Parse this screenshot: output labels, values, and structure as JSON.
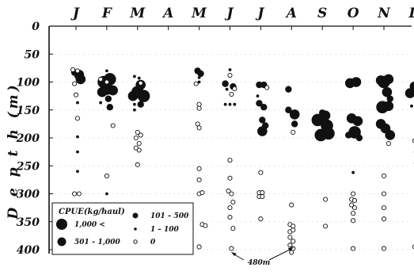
{
  "chart_data": {
    "type": "scatter",
    "ylabel": "D e p t h   (m)",
    "months": [
      "J",
      "F",
      "M",
      "A",
      "M",
      "J",
      "J",
      "A",
      "S",
      "O",
      "N",
      "D"
    ],
    "ylim": [
      0,
      400
    ],
    "yticks": [
      "0",
      "50",
      "100",
      "150",
      "200",
      "250",
      "300",
      "350",
      "400"
    ],
    "legend": {
      "title": "CPUE(kg/haul)",
      "items": [
        {
          "label": "1,000 <",
          "marker": "large-filled"
        },
        {
          "label": "101 – 500",
          "marker": "small-filled"
        },
        {
          "label": "501 – 1,000",
          "marker": "medium-filled"
        },
        {
          "label": "1 – 100",
          "marker": "dot-filled"
        },
        {
          "label": "0",
          "marker": "open"
        }
      ]
    },
    "annotation": "480m",
    "series": [
      {
        "month": 1,
        "points": [
          {
            "x": -0.05,
            "d": 83,
            "c": 2
          },
          {
            "x": 0.1,
            "d": 87,
            "c": 3
          },
          {
            "x": 0.15,
            "d": 95,
            "c": 3
          },
          {
            "x": -0.1,
            "d": 78,
            "c": 0
          },
          {
            "x": 0.05,
            "d": 80,
            "c": 0
          },
          {
            "x": -0.05,
            "d": 103,
            "c": 0
          },
          {
            "x": 0.0,
            "d": 123,
            "c": 0
          },
          {
            "x": 0.05,
            "d": 137,
            "c": 1
          },
          {
            "x": 0.05,
            "d": 165,
            "c": 0
          },
          {
            "x": 0.05,
            "d": 198,
            "c": 1
          },
          {
            "x": 0.05,
            "d": 225,
            "c": 1
          },
          {
            "x": 0.05,
            "d": 260,
            "c": 1
          },
          {
            "x": -0.05,
            "d": 300,
            "c": 0
          },
          {
            "x": 0.1,
            "d": 300,
            "c": 0
          },
          {
            "x": 0.0,
            "d": 325,
            "c": 0
          }
        ]
      },
      {
        "month": 2,
        "points": [
          {
            "x": 0.0,
            "d": 80,
            "c": 1
          },
          {
            "x": -0.1,
            "d": 100,
            "c": 4
          },
          {
            "x": 0.1,
            "d": 95,
            "c": 4
          },
          {
            "x": 0.0,
            "d": 112,
            "c": 4
          },
          {
            "x": -0.15,
            "d": 118,
            "c": 3
          },
          {
            "x": 0.2,
            "d": 115,
            "c": 3
          },
          {
            "x": 0.05,
            "d": 130,
            "c": 2
          },
          {
            "x": -0.2,
            "d": 137,
            "c": 1
          },
          {
            "x": 0.1,
            "d": 145,
            "c": 2
          },
          {
            "x": 0.0,
            "d": 100,
            "c": 0
          },
          {
            "x": -0.2,
            "d": 95,
            "c": 0
          },
          {
            "x": 0.2,
            "d": 178,
            "c": 0
          },
          {
            "x": 0.0,
            "d": 268,
            "c": 0
          },
          {
            "x": 0.0,
            "d": 300,
            "c": 1
          },
          {
            "x": 0.0,
            "d": 330,
            "c": 0
          }
        ]
      },
      {
        "month": 3,
        "points": [
          {
            "x": -0.1,
            "d": 90,
            "c": 1
          },
          {
            "x": 0.05,
            "d": 93,
            "c": 1
          },
          {
            "x": 0.1,
            "d": 105,
            "c": 3
          },
          {
            "x": 0.0,
            "d": 118,
            "c": 4
          },
          {
            "x": 0.2,
            "d": 125,
            "c": 4
          },
          {
            "x": -0.15,
            "d": 125,
            "c": 3
          },
          {
            "x": 0.1,
            "d": 140,
            "c": 2
          },
          {
            "x": -0.1,
            "d": 140,
            "c": 1
          },
          {
            "x": -0.1,
            "d": 150,
            "c": 1
          },
          {
            "x": 0.1,
            "d": 102,
            "c": 0
          },
          {
            "x": 0.0,
            "d": 190,
            "c": 0
          },
          {
            "x": 0.1,
            "d": 195,
            "c": 0
          },
          {
            "x": -0.05,
            "d": 200,
            "c": 0
          },
          {
            "x": 0.05,
            "d": 210,
            "c": 0
          },
          {
            "x": -0.05,
            "d": 218,
            "c": 0
          },
          {
            "x": 0.05,
            "d": 222,
            "c": 0
          },
          {
            "x": 0.0,
            "d": 248,
            "c": 0
          }
        ]
      },
      {
        "month": 5,
        "points": [
          {
            "x": -0.05,
            "d": 80,
            "c": 2
          },
          {
            "x": 0.05,
            "d": 85,
            "c": 2
          },
          {
            "x": 0.0,
            "d": 92,
            "c": 1
          },
          {
            "x": 0.0,
            "d": 100,
            "c": 1
          },
          {
            "x": -0.1,
            "d": 103,
            "c": 0
          },
          {
            "x": 0.0,
            "d": 140,
            "c": 0
          },
          {
            "x": 0.0,
            "d": 147,
            "c": 0
          },
          {
            "x": -0.05,
            "d": 175,
            "c": 0
          },
          {
            "x": 0.0,
            "d": 182,
            "c": 0
          },
          {
            "x": 0.0,
            "d": 255,
            "c": 0
          },
          {
            "x": 0.0,
            "d": 275,
            "c": 0
          },
          {
            "x": 0.0,
            "d": 300,
            "c": 0
          },
          {
            "x": 0.1,
            "d": 298,
            "c": 0
          },
          {
            "x": 0.1,
            "d": 355,
            "c": 0
          },
          {
            "x": 0.2,
            "d": 357,
            "c": 0
          },
          {
            "x": 0.0,
            "d": 395,
            "c": 0
          }
        ]
      },
      {
        "month": 6,
        "points": [
          {
            "x": 0.0,
            "d": 78,
            "c": 1
          },
          {
            "x": 0.0,
            "d": 88,
            "c": 0
          },
          {
            "x": -0.15,
            "d": 103,
            "c": 2
          },
          {
            "x": 0.1,
            "d": 108,
            "c": 2
          },
          {
            "x": -0.1,
            "d": 113,
            "c": 1
          },
          {
            "x": 0.15,
            "d": 112,
            "c": 0
          },
          {
            "x": 0.05,
            "d": 122,
            "c": 0
          },
          {
            "x": -0.15,
            "d": 140,
            "c": 1
          },
          {
            "x": 0.0,
            "d": 140,
            "c": 1
          },
          {
            "x": 0.15,
            "d": 140,
            "c": 1
          },
          {
            "x": 0.0,
            "d": 240,
            "c": 0
          },
          {
            "x": 0.0,
            "d": 272,
            "c": 0
          },
          {
            "x": -0.05,
            "d": 295,
            "c": 0
          },
          {
            "x": 0.05,
            "d": 300,
            "c": 0
          },
          {
            "x": 0.1,
            "d": 315,
            "c": 0
          },
          {
            "x": 0.0,
            "d": 325,
            "c": 0
          },
          {
            "x": 0.0,
            "d": 342,
            "c": 0
          },
          {
            "x": 0.1,
            "d": 362,
            "c": 0
          },
          {
            "x": 0.05,
            "d": 398,
            "c": 0
          }
        ]
      },
      {
        "month": 7,
        "points": [
          {
            "x": -0.05,
            "d": 105,
            "c": 2
          },
          {
            "x": 0.1,
            "d": 105,
            "c": 2
          },
          {
            "x": 0.2,
            "d": 110,
            "c": 0
          },
          {
            "x": -0.1,
            "d": 125,
            "c": 1
          },
          {
            "x": -0.05,
            "d": 138,
            "c": 2
          },
          {
            "x": 0.1,
            "d": 145,
            "c": 2
          },
          {
            "x": 0.05,
            "d": 168,
            "c": 2
          },
          {
            "x": 0.15,
            "d": 178,
            "c": 2
          },
          {
            "x": 0.05,
            "d": 188,
            "c": 3
          },
          {
            "x": 0.0,
            "d": 262,
            "c": 0
          },
          {
            "x": -0.05,
            "d": 298,
            "c": 0
          },
          {
            "x": 0.05,
            "d": 298,
            "c": 0
          },
          {
            "x": -0.05,
            "d": 305,
            "c": 0
          },
          {
            "x": 0.05,
            "d": 305,
            "c": 0
          },
          {
            "x": 0.0,
            "d": 345,
            "c": 0
          }
        ]
      },
      {
        "month": 8,
        "points": [
          {
            "x": -0.1,
            "d": 113,
            "c": 2
          },
          {
            "x": -0.1,
            "d": 150,
            "c": 2
          },
          {
            "x": 0.1,
            "d": 158,
            "c": 3
          },
          {
            "x": 0.1,
            "d": 175,
            "c": 2
          },
          {
            "x": 0.05,
            "d": 190,
            "c": 0
          },
          {
            "x": 0.0,
            "d": 320,
            "c": 0
          },
          {
            "x": -0.05,
            "d": 355,
            "c": 0
          },
          {
            "x": 0.05,
            "d": 358,
            "c": 0
          },
          {
            "x": -0.05,
            "d": 368,
            "c": 0
          },
          {
            "x": 0.05,
            "d": 365,
            "c": 0
          },
          {
            "x": -0.05,
            "d": 378,
            "c": 0
          },
          {
            "x": 0.05,
            "d": 385,
            "c": 0
          },
          {
            "x": -0.05,
            "d": 392,
            "c": 0
          },
          {
            "x": 0.05,
            "d": 398,
            "c": 0
          },
          {
            "x": 0.0,
            "d": 405,
            "c": 0
          }
        ]
      },
      {
        "month": 9,
        "points": [
          {
            "x": -0.15,
            "d": 168,
            "c": 4
          },
          {
            "x": 0.1,
            "d": 160,
            "c": 3
          },
          {
            "x": 0.15,
            "d": 178,
            "c": 4
          },
          {
            "x": -0.05,
            "d": 195,
            "c": 4
          },
          {
            "x": 0.2,
            "d": 192,
            "c": 4
          },
          {
            "x": 0.0,
            "d": 155,
            "c": 2
          },
          {
            "x": 0.1,
            "d": 310,
            "c": 0
          },
          {
            "x": 0.1,
            "d": 358,
            "c": 0
          }
        ]
      },
      {
        "month": 10,
        "points": [
          {
            "x": -0.1,
            "d": 102,
            "c": 3
          },
          {
            "x": 0.1,
            "d": 100,
            "c": 3
          },
          {
            "x": -0.05,
            "d": 165,
            "c": 3
          },
          {
            "x": 0.15,
            "d": 170,
            "c": 3
          },
          {
            "x": 0.05,
            "d": 190,
            "c": 4
          },
          {
            "x": -0.15,
            "d": 195,
            "c": 2
          },
          {
            "x": 0.2,
            "d": 200,
            "c": 2
          },
          {
            "x": 0.0,
            "d": 262,
            "c": 1
          },
          {
            "x": 0.0,
            "d": 300,
            "c": 0
          },
          {
            "x": -0.05,
            "d": 310,
            "c": 0
          },
          {
            "x": 0.05,
            "d": 312,
            "c": 0
          },
          {
            "x": -0.05,
            "d": 320,
            "c": 0
          },
          {
            "x": 0.05,
            "d": 325,
            "c": 0
          },
          {
            "x": 0.0,
            "d": 335,
            "c": 0
          },
          {
            "x": 0.0,
            "d": 348,
            "c": 0
          },
          {
            "x": 0.0,
            "d": 398,
            "c": 0
          }
        ]
      },
      {
        "month": 11,
        "points": [
          {
            "x": -0.1,
            "d": 97,
            "c": 3
          },
          {
            "x": 0.15,
            "d": 95,
            "c": 3
          },
          {
            "x": 0.0,
            "d": 100,
            "c": 4
          },
          {
            "x": 0.1,
            "d": 118,
            "c": 3
          },
          {
            "x": 0.2,
            "d": 130,
            "c": 2
          },
          {
            "x": -0.05,
            "d": 145,
            "c": 4
          },
          {
            "x": 0.15,
            "d": 143,
            "c": 3
          },
          {
            "x": -0.1,
            "d": 175,
            "c": 3
          },
          {
            "x": 0.05,
            "d": 183,
            "c": 3
          },
          {
            "x": 0.2,
            "d": 195,
            "c": 3
          },
          {
            "x": 0.15,
            "d": 210,
            "c": 0
          },
          {
            "x": 0.0,
            "d": 268,
            "c": 0
          },
          {
            "x": 0.0,
            "d": 300,
            "c": 0
          },
          {
            "x": 0.0,
            "d": 325,
            "c": 0
          },
          {
            "x": 0.0,
            "d": 345,
            "c": 0
          },
          {
            "x": 0.0,
            "d": 398,
            "c": 0
          }
        ]
      },
      {
        "month": 12,
        "points": [
          {
            "x": 0.2,
            "d": 98,
            "c": 3
          },
          {
            "x": 0.0,
            "d": 108,
            "c": 3
          },
          {
            "x": -0.15,
            "d": 120,
            "c": 3
          },
          {
            "x": 0.15,
            "d": 130,
            "c": 3
          },
          {
            "x": -0.1,
            "d": 143,
            "c": 1
          },
          {
            "x": 0.1,
            "d": 160,
            "c": 1
          },
          {
            "x": 0.15,
            "d": 180,
            "c": 0
          },
          {
            "x": 0.1,
            "d": 198,
            "c": 1
          },
          {
            "x": 0.2,
            "d": 200,
            "c": 1
          },
          {
            "x": 0.0,
            "d": 205,
            "c": 0
          },
          {
            "x": 0.05,
            "d": 225,
            "c": 0
          },
          {
            "x": 0.05,
            "d": 245,
            "c": 0
          },
          {
            "x": 0.1,
            "d": 262,
            "c": 0
          },
          {
            "x": 0.05,
            "d": 300,
            "c": 1
          },
          {
            "x": 0.0,
            "d": 395,
            "c": 0
          },
          {
            "x": 0.1,
            "d": 400,
            "c": 0
          }
        ]
      }
    ]
  }
}
